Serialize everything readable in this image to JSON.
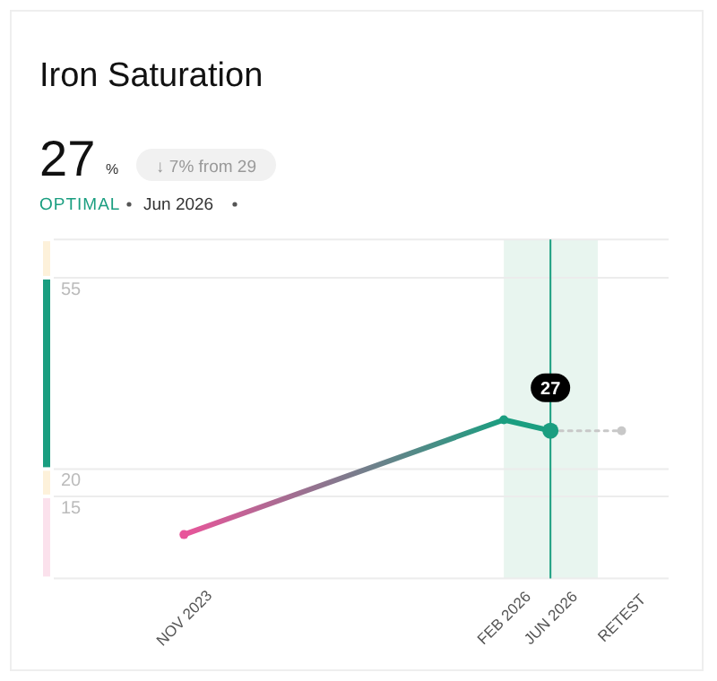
{
  "chart_data": {
    "type": "line",
    "title": "Iron Saturation",
    "annotations": [
      "27",
      "%",
      "↓ 7% from 29",
      "OPTIMAL",
      "Jun 2026"
    ],
    "x": [
      "2023-11",
      "2026-02",
      "2026-06"
    ],
    "series": [
      {
        "colors": [
          "#e8559a",
          "#1a9e80",
          "#1a9e80"
        ],
        "color": "#1a9e80",
        "values": [
          8,
          29,
          27
        ],
        "value_labels": [
          null,
          null,
          "27"
        ]
      },
      {
        "type": "line",
        "x": [
          "2026-06",
          "2026-12"
        ],
        "values": [
          27,
          27
        ],
        "color": "#c8c8c8",
        "line_style": "dotted"
      }
    ],
    "xlim": [
      "2022-12",
      "2027-04"
    ],
    "xticks": [
      {
        "value": "2023-11",
        "label": "NOV 2023"
      },
      {
        "value": "2026-02",
        "label": "FEB 2026"
      },
      {
        "value": "2026-06",
        "label": "JUN 2026"
      },
      {
        "value": "2026-12",
        "label": "RETEST"
      }
    ],
    "ylim": [
      0,
      62
    ],
    "yticks": [
      {
        "value": 0,
        "label": null
      },
      15,
      20,
      55,
      {
        "value": 62,
        "label": null
      }
    ],
    "bands": [
      {
        "axis": "x",
        "from": "2026-02",
        "to": "2026-10",
        "color": "#e8f5ef"
      }
    ],
    "ref_lines": [
      {
        "axis": "x",
        "value": "2026-06",
        "color": "#1a9e80"
      }
    ],
    "grid": "y",
    "marker": "circle",
    "line_style": "solid"
  }
}
